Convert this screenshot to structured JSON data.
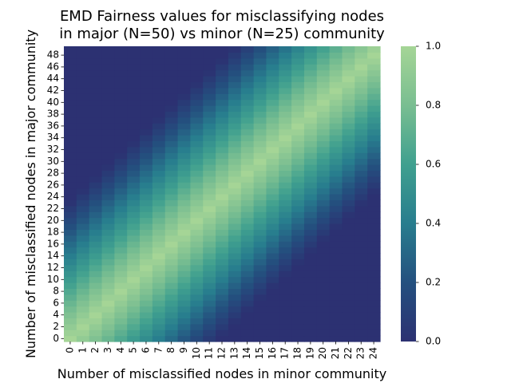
{
  "chart_data": {
    "type": "heatmap",
    "title_line1": "EMD Fairness values for misclassifying nodes",
    "title_line2": "in major (N=50) vs minor (N=25) community",
    "xlabel": "Number of misclassified nodes in minor community",
    "ylabel": "Number of misclassified nodes in major community",
    "x_range": [
      0,
      24
    ],
    "y_range": [
      0,
      49
    ],
    "x_tick_labels": [
      "0",
      "1",
      "2",
      "3",
      "4",
      "5",
      "6",
      "7",
      "8",
      "9",
      "10",
      "11",
      "12",
      "13",
      "14",
      "15",
      "16",
      "17",
      "18",
      "19",
      "20",
      "21",
      "22",
      "23",
      "24"
    ],
    "y_tick_labels": [
      "0",
      "2",
      "4",
      "6",
      "8",
      "10",
      "12",
      "14",
      "16",
      "18",
      "20",
      "22",
      "24",
      "26",
      "28",
      "30",
      "32",
      "34",
      "36",
      "38",
      "40",
      "42",
      "44",
      "46",
      "48"
    ],
    "value_formula": "v = max(0, 1 - |x/25 - y/50| * 2.13); v = 0 where y >= 2x + 26 or y <= 2x - 26",
    "color_scale": {
      "name": "crest",
      "vmin": 0.0,
      "vmax": 1.0,
      "stops": [
        "#2c3172",
        "#24507f",
        "#287d8e",
        "#3fa08f",
        "#79be91",
        "#a5d596"
      ]
    },
    "colorbar_tick_labels": [
      "0.0",
      "0.2",
      "0.4",
      "0.6",
      "0.8",
      "1.0"
    ]
  }
}
